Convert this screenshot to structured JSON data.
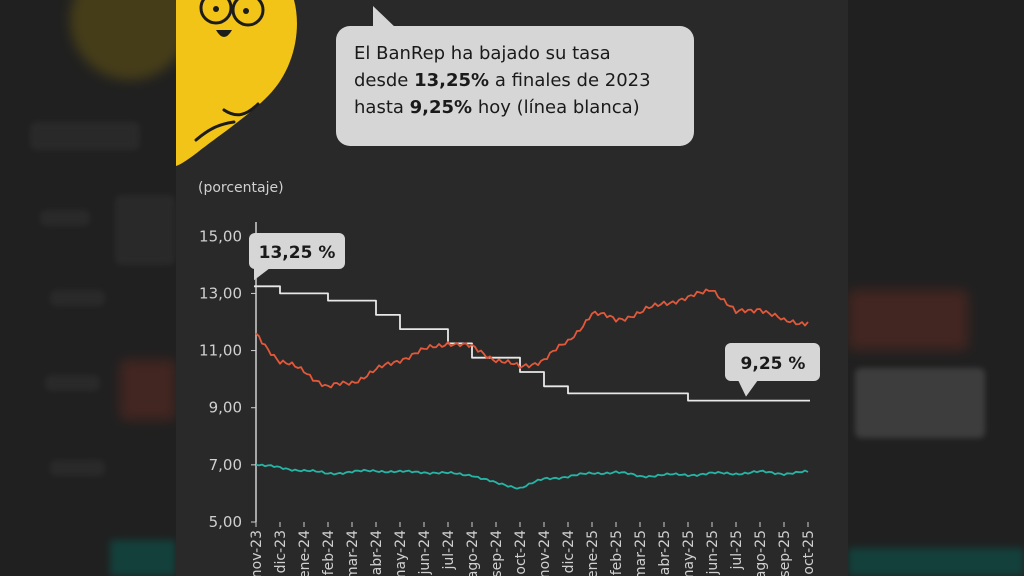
{
  "speech": {
    "line1": "El BanRep ha bajado su tasa",
    "line2_pre": "desde ",
    "line2_bold": "13,25%",
    "line2_post": " a finales de 2023",
    "line3_pre": "hasta ",
    "line3_bold": "9,25%",
    "line3_post": " hoy (línea blanca)"
  },
  "colors": {
    "background": "#292929",
    "character_yellow": "#f2c418",
    "policy_rate": "#e8e8e8",
    "red_series": "#e2583a",
    "teal_series": "#25b5a6",
    "callout": "#d6d6d6"
  },
  "chart_data": {
    "type": "line",
    "ylabel": "(porcentaje)",
    "ylim": [
      5,
      15.5
    ],
    "yticks": [
      "15,00",
      "13,00",
      "11,00",
      "9,00",
      "7,00",
      "5,00"
    ],
    "ytick_values": [
      15,
      13,
      11,
      9,
      7,
      5
    ],
    "categories": [
      "nov-23",
      "dic-23",
      "ene-24",
      "feb-24",
      "mar-24",
      "abr-24",
      "may-24",
      "jun-24",
      "jul-24",
      "ago-24",
      "sep-24",
      "oct-24",
      "nov-24",
      "dic-24",
      "ene-25",
      "feb-25",
      "mar-25",
      "abr-25",
      "may-25",
      "jun-25",
      "jul-25",
      "ago-25",
      "sep-25",
      "oct-25"
    ],
    "grid": false,
    "annotations": [
      {
        "label": "13,25 %",
        "category": "nov-23",
        "value": 13.25
      },
      {
        "label": "9,25 %",
        "category": "oct-25",
        "value": 9.25
      }
    ],
    "series": [
      {
        "name": "",
        "color": "#e8e8e8",
        "step": true,
        "values": [
          13.25,
          13.0,
          13.0,
          12.75,
          12.75,
          12.25,
          11.75,
          11.75,
          11.25,
          10.75,
          10.75,
          10.25,
          9.75,
          9.5,
          9.5,
          9.5,
          9.5,
          9.5,
          9.25,
          9.25,
          9.25,
          9.25,
          9.25,
          9.25
        ]
      },
      {
        "name": "",
        "color": "#e2583a",
        "values": [
          11.6,
          10.6,
          10.3,
          9.7,
          9.9,
          10.3,
          10.7,
          11.0,
          11.3,
          11.1,
          10.7,
          10.4,
          10.7,
          11.3,
          12.3,
          12.1,
          12.3,
          12.7,
          12.8,
          13.2,
          12.3,
          12.5,
          12.0,
          12.0
        ]
      },
      {
        "name": "",
        "color": "#25b5a6",
        "values": [
          7.0,
          6.9,
          6.8,
          6.7,
          6.75,
          6.8,
          6.75,
          6.75,
          6.7,
          6.65,
          6.35,
          6.2,
          6.5,
          6.6,
          6.7,
          6.75,
          6.6,
          6.65,
          6.65,
          6.7,
          6.7,
          6.75,
          6.7,
          6.75
        ]
      }
    ]
  }
}
